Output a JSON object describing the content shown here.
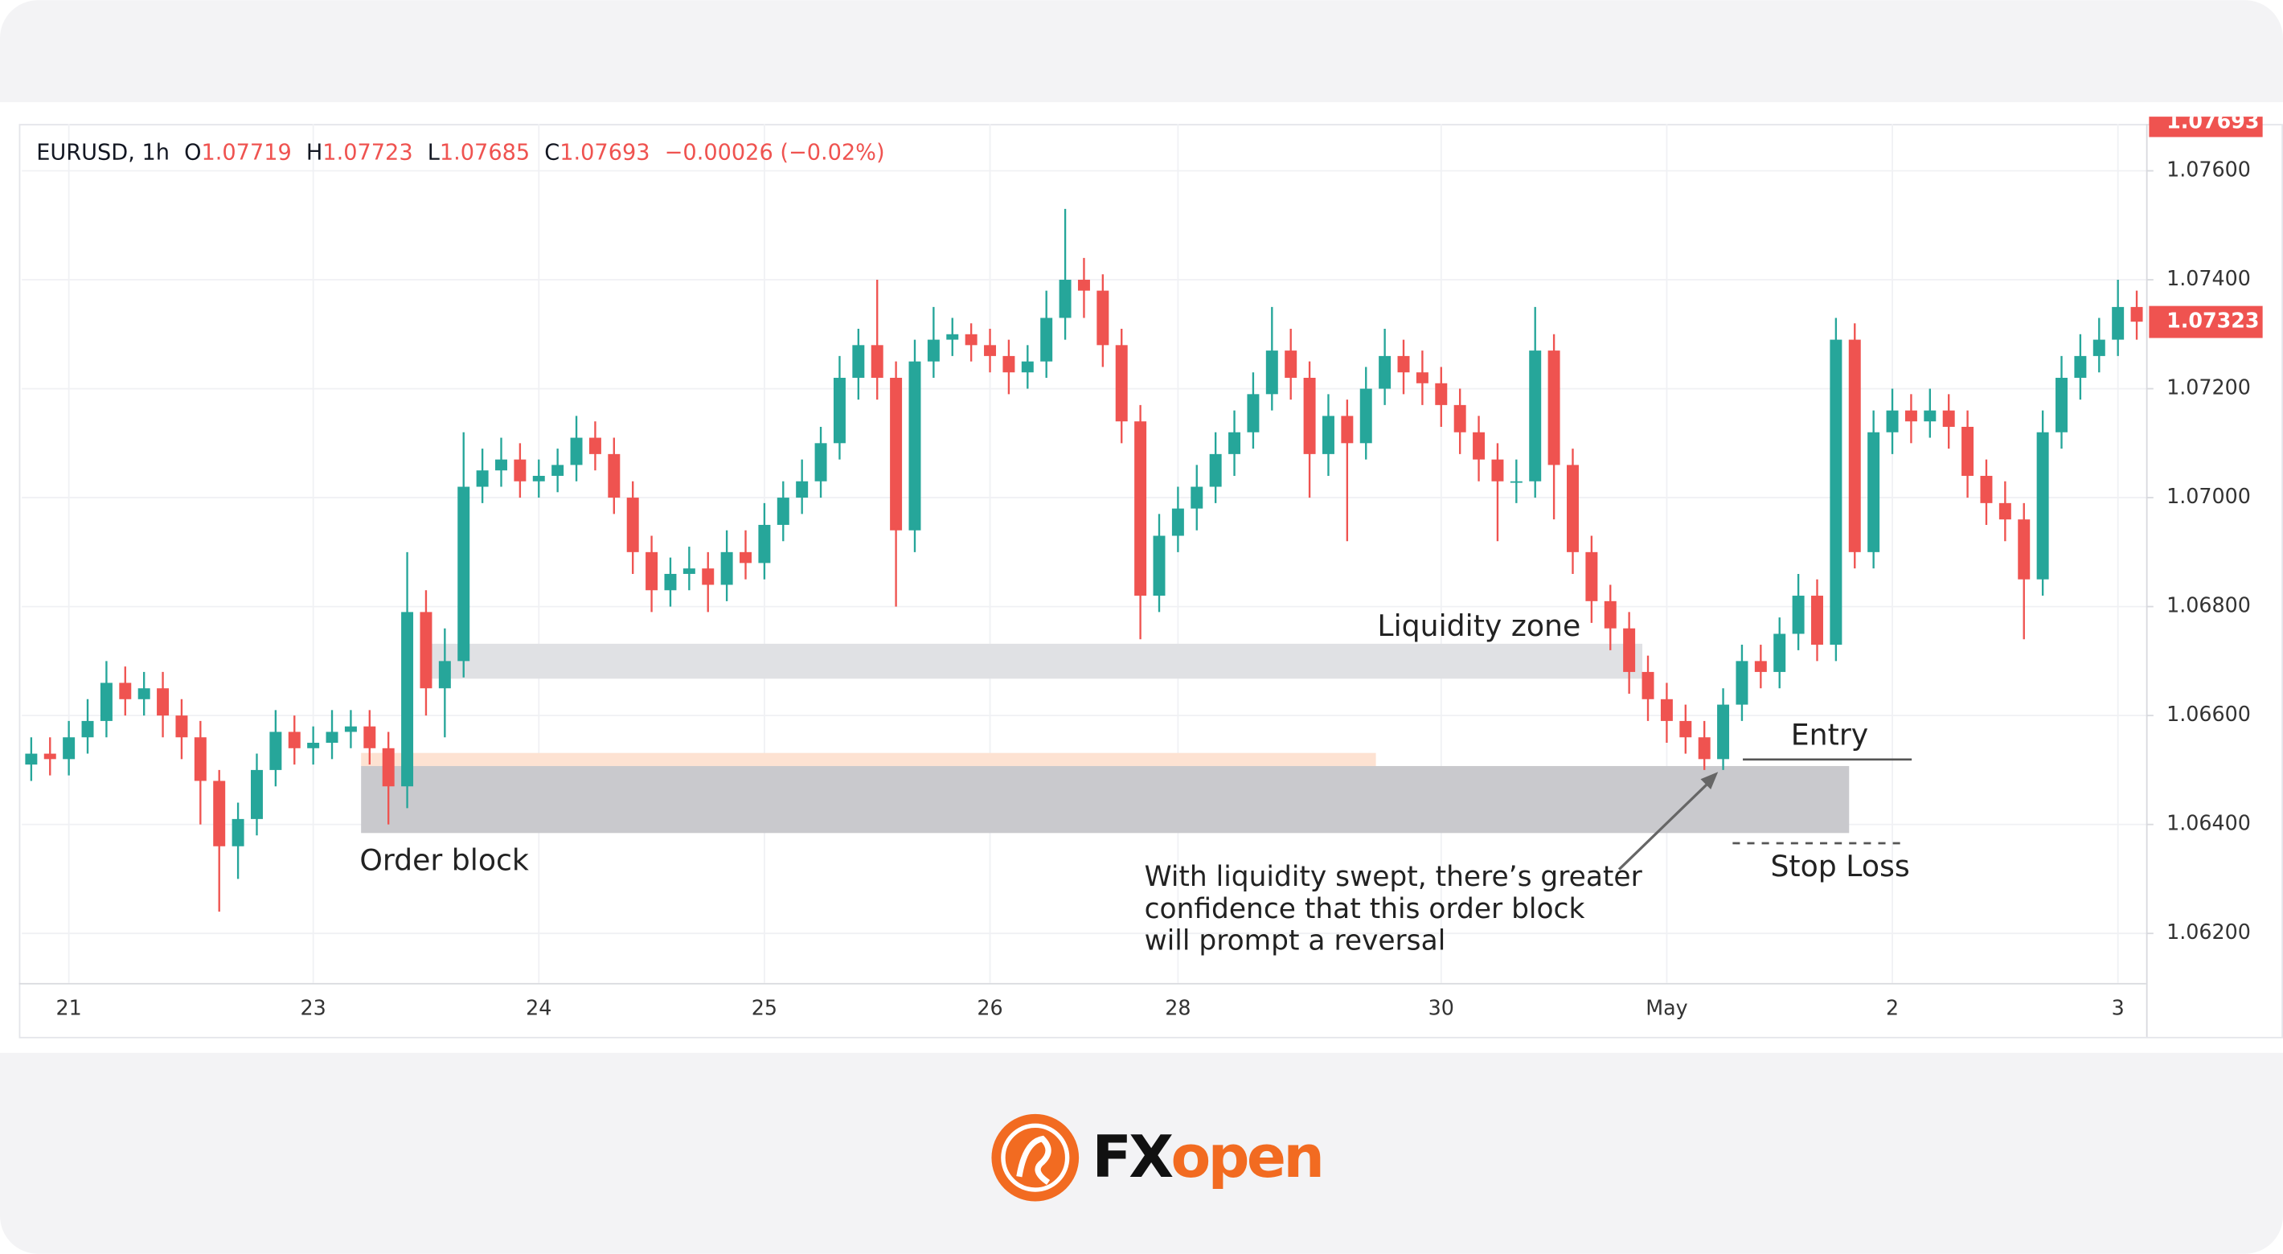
{
  "header": {
    "symbol": "EURUSD, 1h",
    "o_label": "O",
    "o": 1.07719,
    "h_label": "H",
    "h": 1.07723,
    "l_label": "L",
    "l": 1.07685,
    "c_label": "C",
    "c": 1.07693,
    "change": "−0.00026 (−0.02%)"
  },
  "footer": {
    "brand_fx": "FX",
    "brand_open": "open"
  },
  "chart_data": {
    "type": "candlestick",
    "categories": [
      null,
      null,
      "21",
      null,
      null,
      null,
      null,
      null,
      null,
      null,
      null,
      null,
      null,
      null,
      null,
      "23",
      null,
      null,
      null,
      null,
      null,
      null,
      null,
      null,
      null,
      null,
      null,
      "24",
      null,
      null,
      null,
      null,
      null,
      null,
      null,
      null,
      null,
      null,
      null,
      "25",
      null,
      null,
      null,
      null,
      null,
      null,
      null,
      null,
      null,
      null,
      null,
      "26",
      null,
      null,
      null,
      null,
      null,
      null,
      null,
      null,
      null,
      "28",
      null,
      null,
      null,
      null,
      null,
      null,
      null,
      null,
      null,
      null,
      null,
      null,
      null,
      "30",
      null,
      null,
      null,
      null,
      null,
      null,
      null,
      null,
      null,
      null,
      null,
      "May",
      null,
      null,
      null,
      null,
      null,
      null,
      null,
      null,
      null,
      null,
      null,
      "2",
      null,
      null,
      null,
      null,
      null,
      null,
      null,
      null,
      null,
      null,
      null,
      "3",
      null
    ],
    "candles": {
      "open": [
        1.0651,
        1.0653,
        1.0652,
        1.0656,
        1.0659,
        1.0666,
        1.0663,
        1.0665,
        1.066,
        1.0656,
        1.0648,
        1.0636,
        1.0641,
        1.065,
        1.0657,
        1.0654,
        1.0655,
        1.0657,
        1.0658,
        1.0654,
        1.0647,
        1.0679,
        1.0665,
        1.067,
        1.0702,
        1.0705,
        1.0707,
        1.0703,
        1.0704,
        1.0706,
        1.0711,
        1.0708,
        1.07,
        1.069,
        1.0683,
        1.0686,
        1.0687,
        1.0684,
        1.069,
        1.0688,
        1.0695,
        1.07,
        1.0703,
        1.071,
        1.0722,
        1.0728,
        1.0722,
        1.0694,
        1.0725,
        1.0729,
        1.073,
        1.0728,
        1.0726,
        1.0723,
        1.0725,
        1.0733,
        1.074,
        1.0738,
        1.0728,
        1.0714,
        1.0682,
        1.0693,
        1.0698,
        1.0702,
        1.0708,
        1.0712,
        1.0719,
        1.0727,
        1.0722,
        1.0708,
        1.0715,
        1.071,
        1.072,
        1.0726,
        1.0723,
        1.0721,
        1.0717,
        1.0712,
        1.0707,
        1.0703,
        1.0703,
        1.0727,
        1.0706,
        1.069,
        1.0681,
        1.0676,
        1.0668,
        1.0663,
        1.0659,
        1.0656,
        1.0652,
        1.0662,
        1.067,
        1.0668,
        1.0675,
        1.0682,
        1.0673,
        1.0729,
        1.069,
        1.0712,
        1.0716,
        1.0714,
        1.0716,
        1.0713,
        1.0704,
        1.0699,
        1.0696,
        1.0685,
        1.0712,
        1.0722,
        1.0726,
        1.0729,
        1.0735
      ],
      "high": [
        1.0656,
        1.0656,
        1.0659,
        1.0663,
        1.067,
        1.0669,
        1.0668,
        1.0668,
        1.0663,
        1.0659,
        1.065,
        1.0644,
        1.0653,
        1.0661,
        1.066,
        1.0658,
        1.0661,
        1.0661,
        1.0661,
        1.0657,
        1.069,
        1.0683,
        1.0676,
        1.0712,
        1.0709,
        1.0711,
        1.071,
        1.0707,
        1.0709,
        1.0715,
        1.0714,
        1.0711,
        1.0703,
        1.0693,
        1.0689,
        1.0691,
        1.069,
        1.0694,
        1.0694,
        1.0699,
        1.0703,
        1.0707,
        1.0713,
        1.0726,
        1.0731,
        1.074,
        1.0725,
        1.0729,
        1.0735,
        1.0733,
        1.0732,
        1.0731,
        1.0729,
        1.0728,
        1.0738,
        1.0753,
        1.0744,
        1.0741,
        1.0731,
        1.0717,
        1.0697,
        1.0702,
        1.0706,
        1.0712,
        1.0716,
        1.0723,
        1.0735,
        1.0731,
        1.0725,
        1.0719,
        1.0718,
        1.0724,
        1.0731,
        1.0729,
        1.0727,
        1.0724,
        1.072,
        1.0715,
        1.071,
        1.0707,
        1.0735,
        1.073,
        1.0709,
        1.0693,
        1.0684,
        1.0679,
        1.0671,
        1.0666,
        1.0662,
        1.0659,
        1.0665,
        1.0673,
        1.0673,
        1.0678,
        1.0686,
        1.0685,
        1.0733,
        1.0732,
        1.0716,
        1.072,
        1.0719,
        1.072,
        1.0719,
        1.0716,
        1.0707,
        1.0703,
        1.0699,
        1.0716,
        1.0726,
        1.073,
        1.0733,
        1.074,
        1.0738
      ],
      "low": [
        1.0648,
        1.0649,
        1.0649,
        1.0653,
        1.0656,
        1.066,
        1.066,
        1.0656,
        1.0652,
        1.064,
        1.0624,
        1.063,
        1.0638,
        1.0647,
        1.0651,
        1.0651,
        1.0652,
        1.0654,
        1.0651,
        1.064,
        1.0643,
        1.066,
        1.0656,
        1.0667,
        1.0699,
        1.0702,
        1.07,
        1.07,
        1.0701,
        1.0703,
        1.0705,
        1.0697,
        1.0686,
        1.0679,
        1.068,
        1.0683,
        1.0679,
        1.0681,
        1.0685,
        1.0685,
        1.0692,
        1.0697,
        1.07,
        1.0707,
        1.0718,
        1.0718,
        1.068,
        1.069,
        1.0722,
        1.0726,
        1.0725,
        1.0723,
        1.0719,
        1.072,
        1.0722,
        1.0729,
        1.0733,
        1.0724,
        1.071,
        1.0674,
        1.0679,
        1.069,
        1.0694,
        1.0699,
        1.0704,
        1.0709,
        1.0716,
        1.0718,
        1.07,
        1.0704,
        1.0692,
        1.0707,
        1.0717,
        1.0719,
        1.0717,
        1.0713,
        1.0708,
        1.0703,
        1.0692,
        1.0699,
        1.07,
        1.0696,
        1.0686,
        1.0677,
        1.0672,
        1.0664,
        1.0659,
        1.0655,
        1.0653,
        1.065,
        1.065,
        1.0659,
        1.0665,
        1.0665,
        1.0672,
        1.067,
        1.067,
        1.0687,
        1.0687,
        1.0708,
        1.071,
        1.0711,
        1.0709,
        1.07,
        1.0695,
        1.0692,
        1.0674,
        1.0682,
        1.0709,
        1.0718,
        1.0723,
        1.0726,
        1.0729
      ],
      "close": [
        1.0653,
        1.0652,
        1.0656,
        1.0659,
        1.0666,
        1.0663,
        1.0665,
        1.066,
        1.0656,
        1.0648,
        1.0636,
        1.0641,
        1.065,
        1.0657,
        1.0654,
        1.0655,
        1.0657,
        1.0658,
        1.0654,
        1.0647,
        1.0679,
        1.0665,
        1.067,
        1.0702,
        1.0705,
        1.0707,
        1.0703,
        1.0704,
        1.0706,
        1.0711,
        1.0708,
        1.07,
        1.069,
        1.0683,
        1.0686,
        1.0687,
        1.0684,
        1.069,
        1.0688,
        1.0695,
        1.07,
        1.0703,
        1.071,
        1.0722,
        1.0728,
        1.0722,
        1.0694,
        1.0725,
        1.0729,
        1.073,
        1.0728,
        1.0726,
        1.0723,
        1.0725,
        1.0733,
        1.074,
        1.0738,
        1.0728,
        1.0714,
        1.0682,
        1.0693,
        1.0698,
        1.0702,
        1.0708,
        1.0712,
        1.0719,
        1.0727,
        1.0722,
        1.0708,
        1.0715,
        1.071,
        1.072,
        1.0726,
        1.0723,
        1.0721,
        1.0717,
        1.0712,
        1.0707,
        1.0703,
        1.0703,
        1.0727,
        1.0706,
        1.069,
        1.0681,
        1.0676,
        1.0668,
        1.0663,
        1.0659,
        1.0656,
        1.0652,
        1.0662,
        1.067,
        1.0668,
        1.0675,
        1.0682,
        1.0673,
        1.0729,
        1.069,
        1.0712,
        1.0716,
        1.0714,
        1.0716,
        1.0713,
        1.0704,
        1.0699,
        1.0696,
        1.0685,
        1.0712,
        1.0722,
        1.0726,
        1.0729,
        1.0735,
        1.07323
      ]
    },
    "up_color": "#26a69a",
    "down_color": "#ef5350",
    "ylim": [
      1.06109,
      1.07686
    ],
    "yticks": [
      {
        "value": 1.062,
        "label": "1.06200"
      },
      {
        "value": 1.064,
        "label": "1.06400"
      },
      {
        "value": 1.066,
        "label": "1.06600"
      },
      {
        "value": 1.068,
        "label": "1.06800"
      },
      {
        "value": 1.07,
        "label": "1.07000"
      },
      {
        "value": 1.072,
        "label": "1.07200"
      },
      {
        "value": 1.074,
        "label": "1.07400"
      },
      {
        "value": 1.076,
        "label": "1.07600"
      }
    ],
    "grid": true,
    "annotations": {
      "liquidity_zone": "Liquidity zone",
      "order_block": "Order block",
      "entry": "Entry",
      "stop_loss": "Stop Loss",
      "note_lines": [
        "With liquidity swept, there’s greater",
        "confidence that this order block",
        "will prompt a reversal"
      ]
    }
  }
}
